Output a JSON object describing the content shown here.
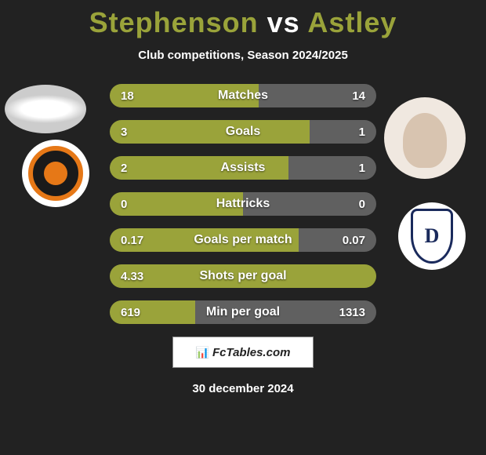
{
  "title_parts": {
    "left": "Stephenson",
    "vs": "vs",
    "right": "Astley"
  },
  "title_colors": {
    "left": "#9aa33a",
    "vs": "#ffffff",
    "right": "#9aa33a"
  },
  "subtitle": "Club competitions, Season 2024/2025",
  "site_label": "FcTables.com",
  "date": "30 december 2024",
  "bar_colors": {
    "left": "#9aa33a",
    "right": "#606060"
  },
  "bars": [
    {
      "label": "Matches",
      "left_value": "18",
      "right_value": "14",
      "left_pct": 56
    },
    {
      "label": "Goals",
      "left_value": "3",
      "right_value": "1",
      "left_pct": 75
    },
    {
      "label": "Assists",
      "left_value": "2",
      "right_value": "1",
      "left_pct": 67
    },
    {
      "label": "Hattricks",
      "left_value": "0",
      "right_value": "0",
      "left_pct": 50
    },
    {
      "label": "Goals per match",
      "left_value": "0.17",
      "right_value": "0.07",
      "left_pct": 71
    },
    {
      "label": "Shots per goal",
      "left_value": "4.33",
      "right_value": "",
      "left_pct": 100
    },
    {
      "label": "Min per goal",
      "left_value": "619",
      "right_value": "1313",
      "left_pct": 32
    }
  ]
}
